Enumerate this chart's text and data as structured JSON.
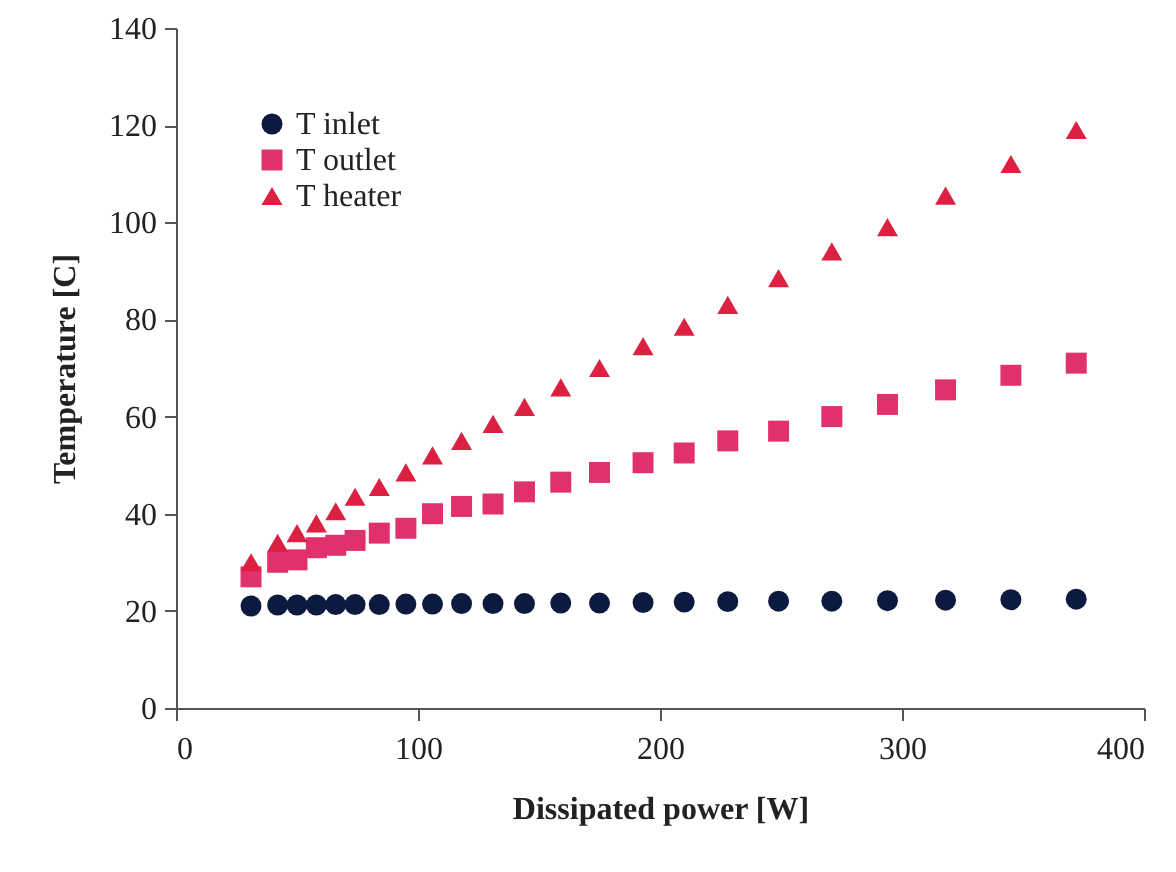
{
  "chart_data": {
    "type": "scatter",
    "xlabel": "Dissipated power [W]",
    "ylabel": "Temperature [C]",
    "x": [
      31,
      42,
      50,
      58,
      66,
      74,
      84,
      95,
      106,
      118,
      131,
      144,
      159,
      175,
      193,
      210,
      228,
      249,
      271,
      294,
      318,
      345,
      372
    ],
    "series": [
      {
        "name": "T inlet",
        "color": "#0d1a3f",
        "marker": "circle",
        "values": [
          21,
          21.2,
          21.2,
          21.2,
          21.3,
          21.3,
          21.3,
          21.4,
          21.4,
          21.5,
          21.5,
          21.5,
          21.6,
          21.6,
          21.7,
          21.8,
          21.9,
          22,
          22,
          22.1,
          22.2,
          22.3,
          22.4
        ]
      },
      {
        "name": "T outlet",
        "color": "#e0306e",
        "marker": "square",
        "values": [
          27,
          30,
          30.5,
          33,
          33.5,
          34.5,
          36,
          37,
          40,
          41.5,
          42,
          44.5,
          46.5,
          48.5,
          50.5,
          52.5,
          55,
          57,
          60,
          62.5,
          65.5,
          68.5,
          71
        ]
      },
      {
        "name": "T heater",
        "color": "#dc2041",
        "marker": "triangle",
        "values": [
          30,
          34,
          36,
          38,
          40.5,
          43.5,
          45.5,
          48.5,
          52,
          55,
          58.5,
          62,
          66,
          70,
          74.5,
          78.5,
          83,
          88.5,
          94,
          99,
          105.5,
          112,
          119
        ]
      }
    ],
    "xlim": [
      0,
      400
    ],
    "xticks": [
      0,
      100,
      200,
      300,
      400
    ],
    "ylim": [
      0,
      140
    ],
    "yticks": [
      0,
      20,
      40,
      60,
      80,
      100,
      120,
      140
    ],
    "grid": false,
    "legend": "top left"
  }
}
